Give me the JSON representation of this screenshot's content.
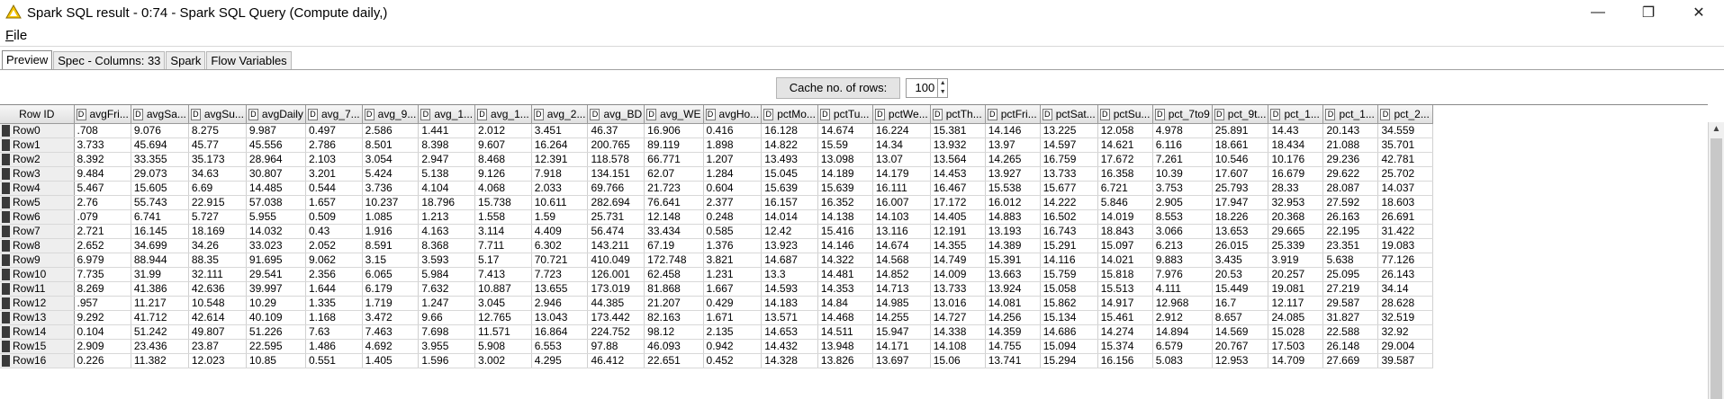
{
  "window": {
    "title": "Spark SQL result - 0:74 - Spark SQL Query (Compute daily,)",
    "controls": {
      "minimize": "—",
      "restore": "❐",
      "close": "✕"
    }
  },
  "menu": {
    "file_mnemonic": "F",
    "file_rest": "ile"
  },
  "tabs": [
    {
      "label": "Preview",
      "active": true
    },
    {
      "label": "Spec - Columns: 33",
      "active": false
    },
    {
      "label": "Spark",
      "active": false
    },
    {
      "label": "Flow Variables",
      "active": false
    }
  ],
  "cache": {
    "label": "Cache no. of rows:",
    "value": "100"
  },
  "table": {
    "type_badge": "D",
    "rowid_header": "Row ID",
    "columns": [
      "avgFri...",
      "avgSa...",
      "avgSu...",
      "avgDaily",
      "avg_7...",
      "avg_9...",
      "avg_1...",
      "avg_1...",
      "avg_2...",
      "avg_BD",
      "avg_WE",
      "avgHo...",
      "pctMo...",
      "pctTu...",
      "pctWe...",
      "pctTh...",
      "pctFri...",
      "pctSat...",
      "pctSu...",
      "pct_7to9",
      "pct_9t...",
      "pct_1...",
      "pct_1...",
      "pct_2..."
    ],
    "rows": [
      {
        "id": "Row0",
        "v": [
          ".708",
          "9.076",
          "8.275",
          "9.987",
          "0.497",
          "2.586",
          "1.441",
          "2.012",
          "3.451",
          "46.37",
          "16.906",
          "0.416",
          "16.128",
          "14.674",
          "16.224",
          "15.381",
          "14.146",
          "13.225",
          "12.058",
          "4.978",
          "25.891",
          "14.43",
          "20.143",
          "34.559"
        ]
      },
      {
        "id": "Row1",
        "v": [
          "3.733",
          "45.694",
          "45.77",
          "45.556",
          "2.786",
          "8.501",
          "8.398",
          "9.607",
          "16.264",
          "200.765",
          "89.119",
          "1.898",
          "14.822",
          "15.59",
          "14.34",
          "13.932",
          "13.97",
          "14.597",
          "14.621",
          "6.116",
          "18.661",
          "18.434",
          "21.088",
          "35.701"
        ]
      },
      {
        "id": "Row2",
        "v": [
          "8.392",
          "33.355",
          "35.173",
          "28.964",
          "2.103",
          "3.054",
          "2.947",
          "8.468",
          "12.391",
          "118.578",
          "66.771",
          "1.207",
          "13.493",
          "13.098",
          "13.07",
          "13.564",
          "14.265",
          "16.759",
          "17.672",
          "7.261",
          "10.546",
          "10.176",
          "29.236",
          "42.781"
        ]
      },
      {
        "id": "Row3",
        "v": [
          "9.484",
          "29.073",
          "34.63",
          "30.807",
          "3.201",
          "5.424",
          "5.138",
          "9.126",
          "7.918",
          "134.151",
          "62.07",
          "1.284",
          "15.045",
          "14.189",
          "14.179",
          "14.453",
          "13.927",
          "13.733",
          "16.358",
          "10.39",
          "17.607",
          "16.679",
          "29.622",
          "25.702"
        ]
      },
      {
        "id": "Row4",
        "v": [
          "5.467",
          "15.605",
          "6.69",
          "14.485",
          "0.544",
          "3.736",
          "4.104",
          "4.068",
          "2.033",
          "69.766",
          "21.723",
          "0.604",
          "15.639",
          "15.639",
          "16.111",
          "16.467",
          "15.538",
          "15.677",
          "6.721",
          "3.753",
          "25.793",
          "28.33",
          "28.087",
          "14.037"
        ]
      },
      {
        "id": "Row5",
        "v": [
          "2.76",
          "55.743",
          "22.915",
          "57.038",
          "1.657",
          "10.237",
          "18.796",
          "15.738",
          "10.611",
          "282.694",
          "76.641",
          "2.377",
          "16.157",
          "16.352",
          "16.007",
          "17.172",
          "16.012",
          "14.222",
          "5.846",
          "2.905",
          "17.947",
          "32.953",
          "27.592",
          "18.603"
        ]
      },
      {
        "id": "Row6",
        "v": [
          ".079",
          "6.741",
          "5.727",
          "5.955",
          "0.509",
          "1.085",
          "1.213",
          "1.558",
          "1.59",
          "25.731",
          "12.148",
          "0.248",
          "14.014",
          "14.138",
          "14.103",
          "14.405",
          "14.883",
          "16.502",
          "14.019",
          "8.553",
          "18.226",
          "20.368",
          "26.163",
          "26.691"
        ]
      },
      {
        "id": "Row7",
        "v": [
          "2.721",
          "16.145",
          "18.169",
          "14.032",
          "0.43",
          "1.916",
          "4.163",
          "3.114",
          "4.409",
          "56.474",
          "33.434",
          "0.585",
          "12.42",
          "15.416",
          "13.116",
          "12.191",
          "13.193",
          "16.743",
          "18.843",
          "3.066",
          "13.653",
          "29.665",
          "22.195",
          "31.422"
        ]
      },
      {
        "id": "Row8",
        "v": [
          "2.652",
          "34.699",
          "34.26",
          "33.023",
          "2.052",
          "8.591",
          "8.368",
          "7.711",
          "6.302",
          "143.211",
          "67.19",
          "1.376",
          "13.923",
          "14.146",
          "14.674",
          "14.355",
          "14.389",
          "15.291",
          "15.097",
          "6.213",
          "26.015",
          "25.339",
          "23.351",
          "19.083"
        ]
      },
      {
        "id": "Row9",
        "v": [
          "6.979",
          "88.944",
          "88.35",
          "91.695",
          "9.062",
          "3.15",
          "3.593",
          "5.17",
          "70.721",
          "410.049",
          "172.748",
          "3.821",
          "14.687",
          "14.322",
          "14.568",
          "14.749",
          "15.391",
          "14.116",
          "14.021",
          "9.883",
          "3.435",
          "3.919",
          "5.638",
          "77.126"
        ]
      },
      {
        "id": "Row10",
        "v": [
          "7.735",
          "31.99",
          "32.111",
          "29.541",
          "2.356",
          "6.065",
          "5.984",
          "7.413",
          "7.723",
          "126.001",
          "62.458",
          "1.231",
          "13.3",
          "14.481",
          "14.852",
          "14.009",
          "13.663",
          "15.759",
          "15.818",
          "7.976",
          "20.53",
          "20.257",
          "25.095",
          "26.143"
        ]
      },
      {
        "id": "Row11",
        "v": [
          "8.269",
          "41.386",
          "42.636",
          "39.997",
          "1.644",
          "6.179",
          "7.632",
          "10.887",
          "13.655",
          "173.019",
          "81.868",
          "1.667",
          "14.593",
          "14.353",
          "14.713",
          "13.733",
          "13.924",
          "15.058",
          "15.513",
          "4.111",
          "15.449",
          "19.081",
          "27.219",
          "34.14"
        ]
      },
      {
        "id": "Row12",
        "v": [
          ".957",
          "11.217",
          "10.548",
          "10.29",
          "1.335",
          "1.719",
          "1.247",
          "3.045",
          "2.946",
          "44.385",
          "21.207",
          "0.429",
          "14.183",
          "14.84",
          "14.985",
          "13.016",
          "14.081",
          "15.862",
          "14.917",
          "12.968",
          "16.7",
          "12.117",
          "29.587",
          "28.628"
        ]
      },
      {
        "id": "Row13",
        "v": [
          "9.292",
          "41.712",
          "42.614",
          "40.109",
          "1.168",
          "3.472",
          "9.66",
          "12.765",
          "13.043",
          "173.442",
          "82.163",
          "1.671",
          "13.571",
          "14.468",
          "14.255",
          "14.727",
          "14.256",
          "15.134",
          "15.461",
          "2.912",
          "8.657",
          "24.085",
          "31.827",
          "32.519"
        ]
      },
      {
        "id": "Row14",
        "v": [
          "0.104",
          "51.242",
          "49.807",
          "51.226",
          "7.63",
          "7.463",
          "7.698",
          "11.571",
          "16.864",
          "224.752",
          "98.12",
          "2.135",
          "14.653",
          "14.511",
          "15.947",
          "14.338",
          "14.359",
          "14.686",
          "14.274",
          "14.894",
          "14.569",
          "15.028",
          "22.588",
          "32.92"
        ]
      },
      {
        "id": "Row15",
        "v": [
          "2.909",
          "23.436",
          "23.87",
          "22.595",
          "1.486",
          "4.692",
          "3.955",
          "5.908",
          "6.553",
          "97.88",
          "46.093",
          "0.942",
          "14.432",
          "13.948",
          "14.171",
          "14.108",
          "14.755",
          "15.094",
          "15.374",
          "6.579",
          "20.767",
          "17.503",
          "26.148",
          "29.004"
        ]
      },
      {
        "id": "Row16",
        "v": [
          "0.226",
          "11.382",
          "12.023",
          "10.85",
          "0.551",
          "1.405",
          "1.596",
          "3.002",
          "4.295",
          "46.412",
          "22.651",
          "0.452",
          "14.328",
          "13.826",
          "13.697",
          "15.06",
          "13.741",
          "15.294",
          "16.156",
          "5.083",
          "12.953",
          "14.709",
          "27.669",
          "39.587"
        ]
      }
    ]
  }
}
